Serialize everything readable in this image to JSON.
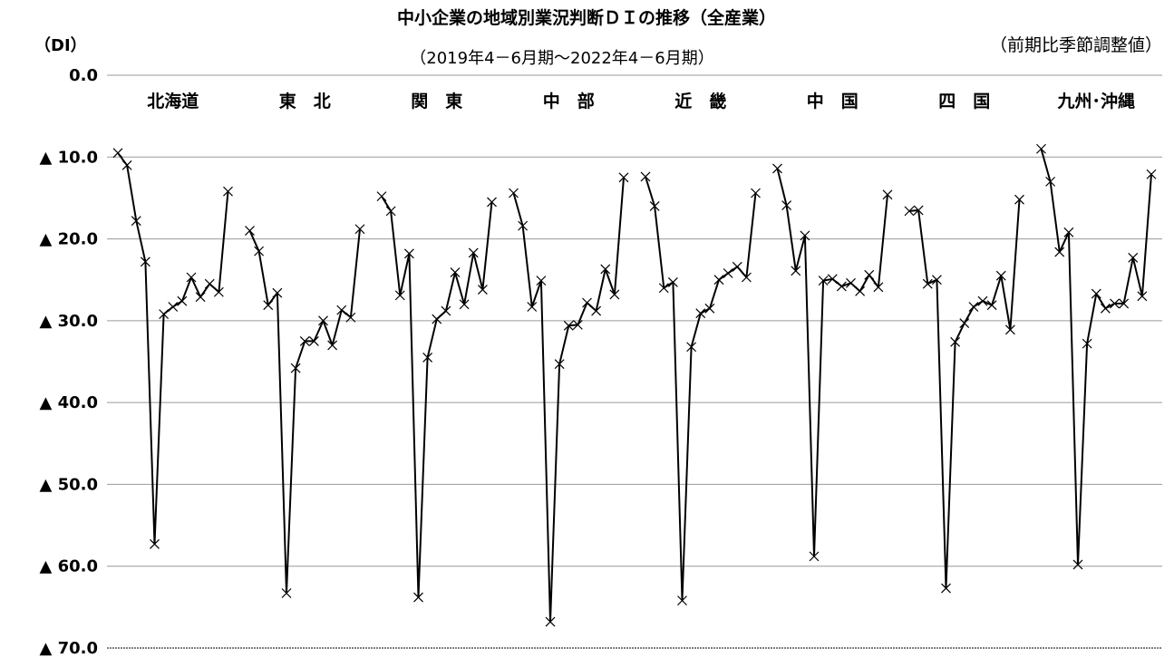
{
  "chart_data": {
    "type": "line",
    "title": "中小企業の地域別業況判断ＤＩの推移（全産業）",
    "subtitle": "（2019年4－6月期～2022年4－6月期）",
    "note": "（前期比季節調整値）",
    "ylabel": "（DI）",
    "ylim": [
      0,
      70
    ],
    "y_reversed": true,
    "yticks": [
      "0.0",
      "▲ 10.0",
      "▲ 20.0",
      "▲ 30.0",
      "▲ 40.0",
      "▲ 50.0",
      "▲ 60.0",
      "▲ 70.0"
    ],
    "grid": true,
    "marker": "x",
    "series": [
      {
        "name": "北海道",
        "values": [
          -9.5,
          -11.0,
          -17.8,
          -22.8,
          -57.3,
          -29.2,
          -28.3,
          -27.6,
          -24.7,
          -27.1,
          -25.5,
          -26.5,
          -14.2
        ]
      },
      {
        "name": "東　北",
        "values": [
          -19.0,
          -21.5,
          -28.1,
          -26.6,
          -63.3,
          -35.8,
          -32.5,
          -32.5,
          -30.0,
          -33.0,
          -28.7,
          -29.6,
          -18.8
        ]
      },
      {
        "name": "関　東",
        "values": [
          -14.8,
          -16.6,
          -26.9,
          -21.8,
          -63.8,
          -34.5,
          -29.8,
          -28.8,
          -24.1,
          -28.0,
          -21.7,
          -26.2,
          -15.5
        ]
      },
      {
        "name": "中　部",
        "values": [
          -14.4,
          -18.4,
          -28.3,
          -25.1,
          -66.8,
          -35.3,
          -30.6,
          -30.5,
          -27.8,
          -28.8,
          -23.7,
          -26.8,
          -12.5
        ]
      },
      {
        "name": "近　畿",
        "values": [
          -12.4,
          -16.0,
          -26.0,
          -25.3,
          -64.2,
          -33.2,
          -29.1,
          -28.5,
          -25.0,
          -24.2,
          -23.4,
          -24.7,
          -14.4
        ]
      },
      {
        "name": "中　国",
        "values": [
          -11.4,
          -15.9,
          -23.9,
          -19.6,
          -58.8,
          -25.1,
          -24.9,
          -25.8,
          -25.4,
          -26.4,
          -24.4,
          -25.9,
          -14.6
        ]
      },
      {
        "name": "四　国",
        "values": [
          -16.6,
          -16.5,
          -25.5,
          -25.0,
          -62.7,
          -32.6,
          -30.3,
          -28.3,
          -27.6,
          -28.1,
          -24.5,
          -31.1,
          -15.2
        ]
      },
      {
        "name": "九州･沖縄",
        "values": [
          -9.0,
          -13.0,
          -21.6,
          -19.2,
          -59.8,
          -32.8,
          -26.7,
          -28.5,
          -27.9,
          -27.9,
          -22.3,
          -27.0,
          -12.1
        ]
      }
    ]
  }
}
